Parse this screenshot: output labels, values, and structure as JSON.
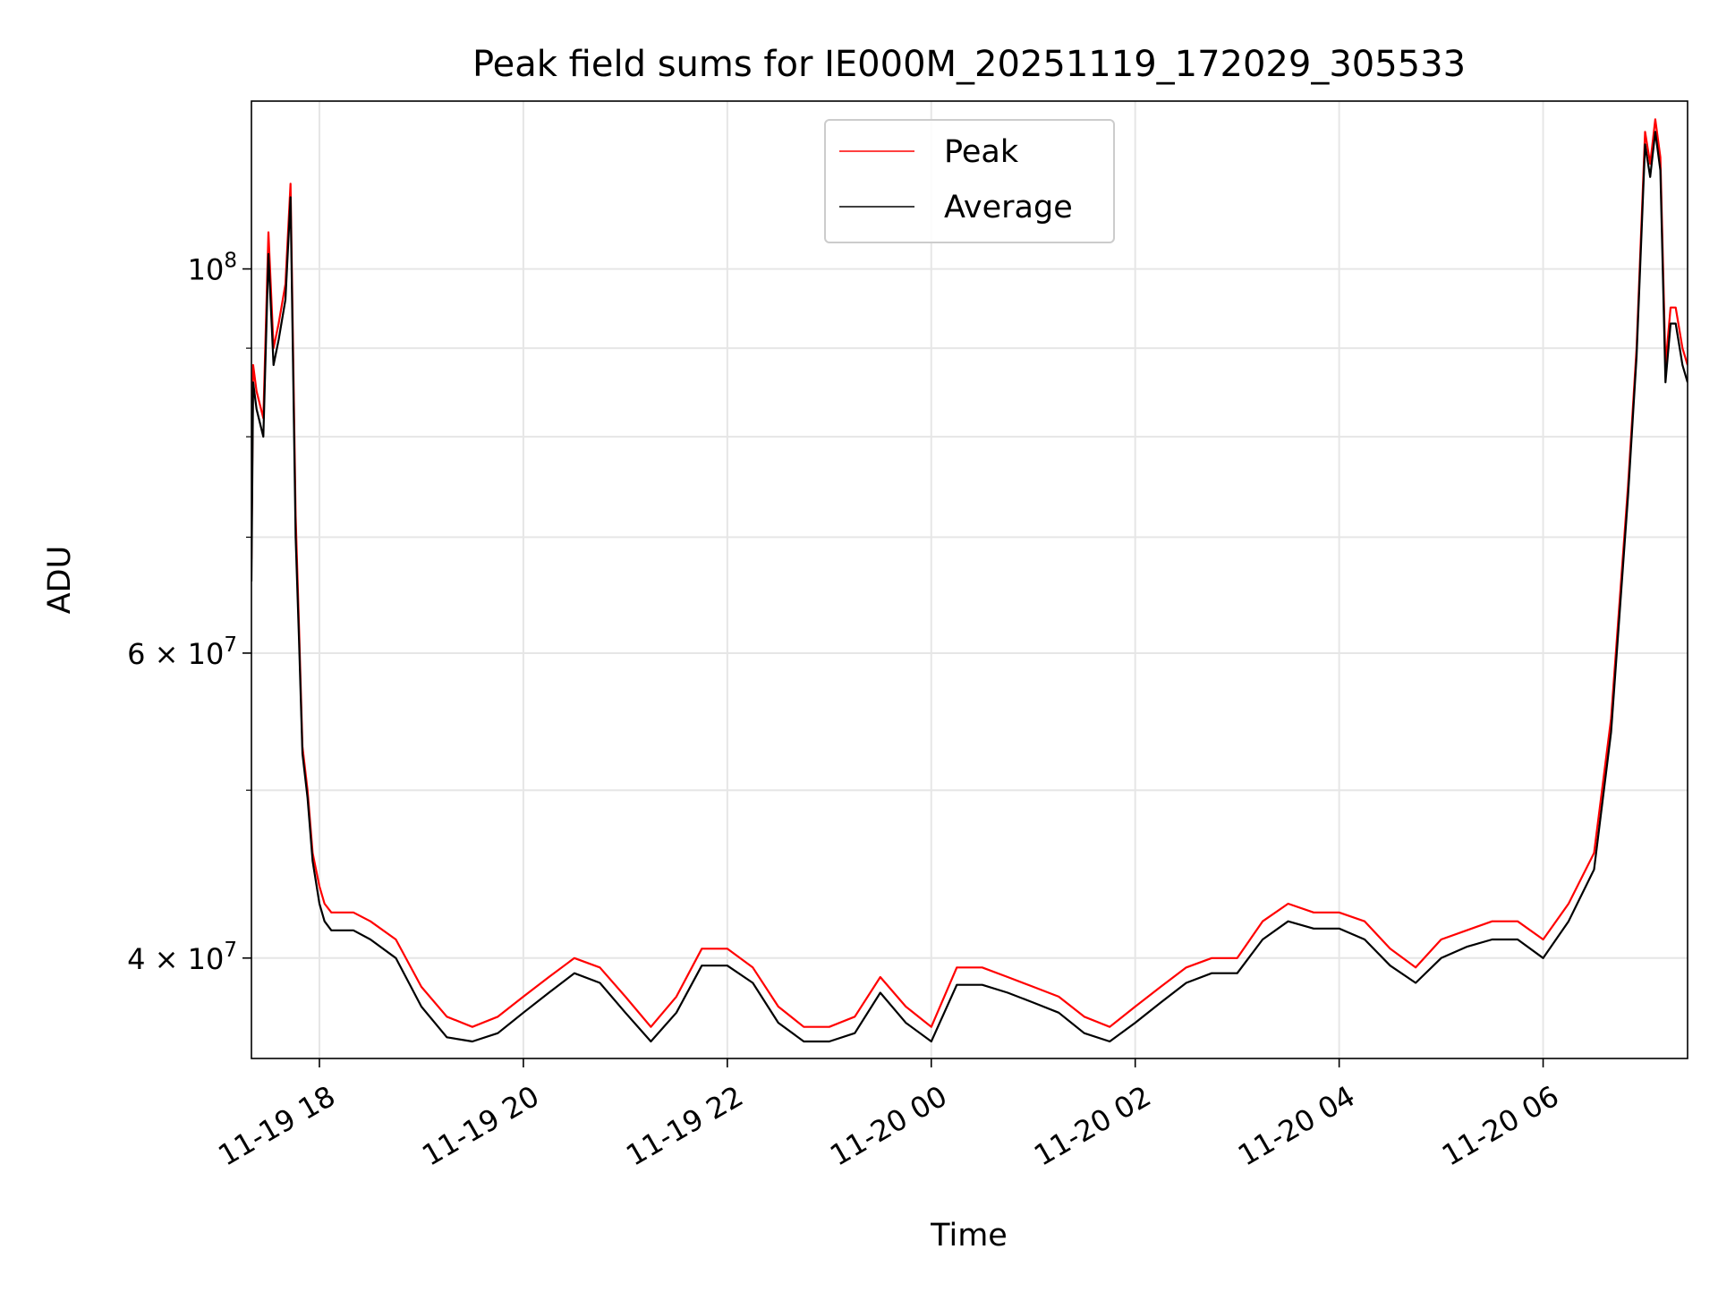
{
  "chart_data": {
    "type": "line",
    "title": "Peak field sums for IE000M_20251119_172029_305533",
    "xlabel": "Time",
    "ylabel": "ADU",
    "yscale": "log",
    "ylim": [
      35000000,
      125000000
    ],
    "xlim": [
      "2025-11-19 17:20",
      "2025-11-20 07:25"
    ],
    "x_ticks": [
      {
        "t": "2025-11-19 18:00",
        "label": "11-19 18"
      },
      {
        "t": "2025-11-19 20:00",
        "label": "11-19 20"
      },
      {
        "t": "2025-11-19 22:00",
        "label": "11-19 22"
      },
      {
        "t": "2025-11-20 00:00",
        "label": "11-20 00"
      },
      {
        "t": "2025-11-20 02:00",
        "label": "11-20 02"
      },
      {
        "t": "2025-11-20 04:00",
        "label": "11-20 04"
      },
      {
        "t": "2025-11-20 06:00",
        "label": "11-20 06"
      }
    ],
    "y_ticks": [
      {
        "value": 40000000,
        "base": "4 × 10",
        "exp": "7"
      },
      {
        "value": 60000000,
        "base": "6 × 10",
        "exp": "7"
      },
      {
        "value": 100000000,
        "base": "10",
        "exp": "8"
      }
    ],
    "y_minor_ticks": [
      50000000,
      70000000,
      80000000,
      90000000
    ],
    "grid": true,
    "legend_position": "top-center",
    "series": [
      {
        "name": "Peak",
        "color": "#ff0000",
        "x": [
          "2025-11-19 17:20",
          "2025-11-19 17:21",
          "2025-11-19 17:23",
          "2025-11-19 17:27",
          "2025-11-19 17:30",
          "2025-11-19 17:33",
          "2025-11-19 17:36",
          "2025-11-19 17:40",
          "2025-11-19 17:43",
          "2025-11-19 17:46",
          "2025-11-19 17:48",
          "2025-11-19 17:50",
          "2025-11-19 17:53",
          "2025-11-19 17:56",
          "2025-11-19 18:00",
          "2025-11-19 18:03",
          "2025-11-19 18:07",
          "2025-11-19 18:12",
          "2025-11-19 18:20",
          "2025-11-19 18:30",
          "2025-11-19 18:45",
          "2025-11-19 19:00",
          "2025-11-19 19:15",
          "2025-11-19 19:30",
          "2025-11-19 19:45",
          "2025-11-19 20:00",
          "2025-11-19 20:15",
          "2025-11-19 20:30",
          "2025-11-19 20:45",
          "2025-11-19 21:00",
          "2025-11-19 21:15",
          "2025-11-19 21:30",
          "2025-11-19 21:45",
          "2025-11-19 22:00",
          "2025-11-19 22:15",
          "2025-11-19 22:30",
          "2025-11-19 22:45",
          "2025-11-19 23:00",
          "2025-11-19 23:15",
          "2025-11-19 23:30",
          "2025-11-19 23:45",
          "2025-11-20 00:00",
          "2025-11-20 00:15",
          "2025-11-20 00:30",
          "2025-11-20 00:45",
          "2025-11-20 01:00",
          "2025-11-20 01:15",
          "2025-11-20 01:30",
          "2025-11-20 01:45",
          "2025-11-20 02:00",
          "2025-11-20 02:15",
          "2025-11-20 02:30",
          "2025-11-20 02:45",
          "2025-11-20 03:00",
          "2025-11-20 03:15",
          "2025-11-20 03:30",
          "2025-11-20 03:45",
          "2025-11-20 04:00",
          "2025-11-20 04:15",
          "2025-11-20 04:30",
          "2025-11-20 04:45",
          "2025-11-20 05:00",
          "2025-11-20 05:15",
          "2025-11-20 05:30",
          "2025-11-20 05:45",
          "2025-11-20 06:00",
          "2025-11-20 06:15",
          "2025-11-20 06:30",
          "2025-11-20 06:40",
          "2025-11-20 06:50",
          "2025-11-20 06:55",
          "2025-11-20 07:00",
          "2025-11-20 07:03",
          "2025-11-20 07:06",
          "2025-11-20 07:09",
          "2025-11-20 07:12",
          "2025-11-20 07:15",
          "2025-11-20 07:18",
          "2025-11-20 07:22",
          "2025-11-20 07:25"
        ],
        "y": [
          68000000,
          88000000,
          85000000,
          82000000,
          105000000,
          90000000,
          93000000,
          98000000,
          112000000,
          72000000,
          62000000,
          53000000,
          50000000,
          46000000,
          44000000,
          43000000,
          42500000,
          42500000,
          42500000,
          42000000,
          41000000,
          38500000,
          37000000,
          36500000,
          37000000,
          38000000,
          39000000,
          40000000,
          39500000,
          38000000,
          36500000,
          38000000,
          40500000,
          40500000,
          39500000,
          37500000,
          36500000,
          36500000,
          37000000,
          39000000,
          37500000,
          36500000,
          39500000,
          39500000,
          39000000,
          38500000,
          38000000,
          37000000,
          36500000,
          37500000,
          38500000,
          39500000,
          40000000,
          40000000,
          42000000,
          43000000,
          42500000,
          42500000,
          42000000,
          40500000,
          39500000,
          41000000,
          41500000,
          42000000,
          42000000,
          41000000,
          43000000,
          46000000,
          55000000,
          75000000,
          90000000,
          120000000,
          115000000,
          122000000,
          116000000,
          88000000,
          95000000,
          95000000,
          90000000,
          88000000
        ]
      },
      {
        "name": "Average",
        "color": "#000000",
        "x": [
          "2025-11-19 17:20",
          "2025-11-19 17:21",
          "2025-11-19 17:23",
          "2025-11-19 17:27",
          "2025-11-19 17:30",
          "2025-11-19 17:33",
          "2025-11-19 17:36",
          "2025-11-19 17:40",
          "2025-11-19 17:43",
          "2025-11-19 17:46",
          "2025-11-19 17:48",
          "2025-11-19 17:50",
          "2025-11-19 17:53",
          "2025-11-19 17:56",
          "2025-11-19 18:00",
          "2025-11-19 18:03",
          "2025-11-19 18:07",
          "2025-11-19 18:12",
          "2025-11-19 18:20",
          "2025-11-19 18:30",
          "2025-11-19 18:45",
          "2025-11-19 19:00",
          "2025-11-19 19:15",
          "2025-11-19 19:30",
          "2025-11-19 19:45",
          "2025-11-19 20:00",
          "2025-11-19 20:15",
          "2025-11-19 20:30",
          "2025-11-19 20:45",
          "2025-11-19 21:00",
          "2025-11-19 21:15",
          "2025-11-19 21:30",
          "2025-11-19 21:45",
          "2025-11-19 22:00",
          "2025-11-19 22:15",
          "2025-11-19 22:30",
          "2025-11-19 22:45",
          "2025-11-19 23:00",
          "2025-11-19 23:15",
          "2025-11-19 23:30",
          "2025-11-19 23:45",
          "2025-11-20 00:00",
          "2025-11-20 00:15",
          "2025-11-20 00:30",
          "2025-11-20 00:45",
          "2025-11-20 01:00",
          "2025-11-20 01:15",
          "2025-11-20 01:30",
          "2025-11-20 01:45",
          "2025-11-20 02:00",
          "2025-11-20 02:15",
          "2025-11-20 02:30",
          "2025-11-20 02:45",
          "2025-11-20 03:00",
          "2025-11-20 03:15",
          "2025-11-20 03:30",
          "2025-11-20 03:45",
          "2025-11-20 04:00",
          "2025-11-20 04:15",
          "2025-11-20 04:30",
          "2025-11-20 04:45",
          "2025-11-20 05:00",
          "2025-11-20 05:15",
          "2025-11-20 05:30",
          "2025-11-20 05:45",
          "2025-11-20 06:00",
          "2025-11-20 06:15",
          "2025-11-20 06:30",
          "2025-11-20 06:40",
          "2025-11-20 06:50",
          "2025-11-20 06:55",
          "2025-11-20 07:00",
          "2025-11-20 07:03",
          "2025-11-20 07:06",
          "2025-11-20 07:09",
          "2025-11-20 07:12",
          "2025-11-20 07:15",
          "2025-11-20 07:18",
          "2025-11-20 07:22",
          "2025-11-20 07:25"
        ],
        "y": [
          66000000,
          86000000,
          83000000,
          80000000,
          102000000,
          88000000,
          91000000,
          96000000,
          110000000,
          70000000,
          61000000,
          52500000,
          49500000,
          45500000,
          43000000,
          42000000,
          41500000,
          41500000,
          41500000,
          41000000,
          40000000,
          37500000,
          36000000,
          35800000,
          36200000,
          37200000,
          38200000,
          39200000,
          38700000,
          37200000,
          35800000,
          37200000,
          39600000,
          39600000,
          38700000,
          36700000,
          35800000,
          35800000,
          36200000,
          38200000,
          36700000,
          35800000,
          38600000,
          38600000,
          38200000,
          37700000,
          37200000,
          36200000,
          35800000,
          36700000,
          37700000,
          38700000,
          39200000,
          39200000,
          41000000,
          42000000,
          41600000,
          41600000,
          41000000,
          39600000,
          38700000,
          40000000,
          40600000,
          41000000,
          41000000,
          40000000,
          42000000,
          45000000,
          54000000,
          74000000,
          89000000,
          118000000,
          113000000,
          120000000,
          114000000,
          86000000,
          93000000,
          93000000,
          88000000,
          86000000
        ]
      }
    ]
  }
}
